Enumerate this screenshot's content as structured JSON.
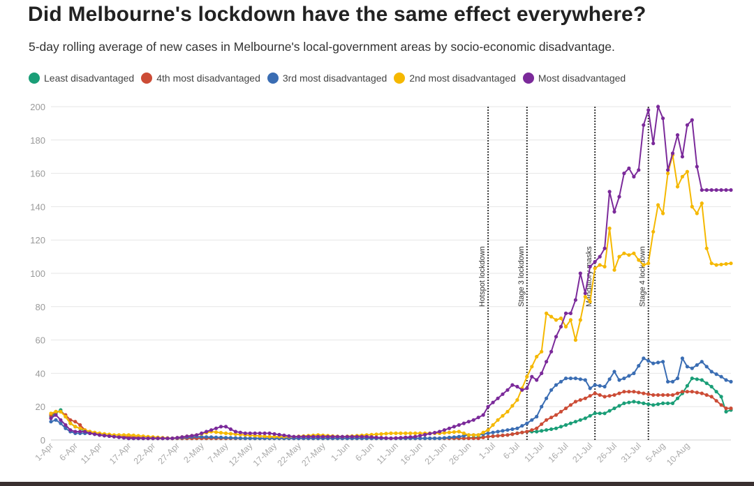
{
  "page": {
    "title": "Did Melbourne's lockdown have the same effect everywhere?",
    "subtitle": "5-day rolling average of new cases in Melbourne's local-government areas by socio-economic disadvantage."
  },
  "legend": [
    {
      "label": "Least disadvantaged",
      "color": "#1a9e77"
    },
    {
      "label": "4th most disadvantaged",
      "color": "#cc4c36"
    },
    {
      "label": "3rd most disadvantaged",
      "color": "#3a6db3"
    },
    {
      "label": "2nd most disadvantaged",
      "color": "#f5b800"
    },
    {
      "label": "Most disadvantaged",
      "color": "#7b2a9a"
    }
  ],
  "chart_data": {
    "type": "line",
    "x_start_date": "2020-04-01",
    "x_tick_labels": [
      "1-Apr",
      "6-Apr",
      "11-Apr",
      "17-Apr",
      "22-Apr",
      "27-Apr",
      "2-May",
      "7-May",
      "12-May",
      "17-May",
      "22-May",
      "27-May",
      "1-Jun",
      "6-Jun",
      "11-Jun",
      "16-Jun",
      "21-Jun",
      "26-Jun",
      "1-Jul",
      "6-Jul",
      "11-Jul",
      "16-Jul",
      "21-Jul",
      "26-Jul",
      "31-Jul",
      "5-Aug",
      "10-Aug"
    ],
    "ylim": [
      0,
      200
    ],
    "y_ticks": [
      0,
      20,
      40,
      60,
      80,
      100,
      120,
      140,
      160,
      180,
      200
    ],
    "grid": true,
    "legend_position": "top",
    "annotations": [
      {
        "label": "Hotspot lockdown",
        "date": "2020-06-30"
      },
      {
        "label": "Stage 3 lockdown",
        "date": "2020-07-08"
      },
      {
        "label": "Mandatory masks",
        "date": "2020-07-22"
      },
      {
        "label": "Stage 4 lockdown",
        "date": "2020-08-02"
      }
    ],
    "series": [
      {
        "name": "Least disadvantaged",
        "color": "#1a9e77",
        "points": [
          [
            0,
            14
          ],
          [
            1,
            16
          ],
          [
            2,
            18
          ],
          [
            3,
            14
          ],
          [
            4,
            10
          ],
          [
            5,
            8
          ],
          [
            6,
            7
          ],
          [
            7,
            5
          ],
          [
            8,
            4
          ],
          [
            10,
            3
          ],
          [
            13,
            2
          ],
          [
            16,
            1
          ],
          [
            20,
            1
          ],
          [
            25,
            1
          ],
          [
            30,
            1
          ],
          [
            40,
            1
          ],
          [
            50,
            1
          ],
          [
            60,
            1
          ],
          [
            70,
            1
          ],
          [
            80,
            1
          ],
          [
            85,
            1
          ],
          [
            90,
            2
          ],
          [
            94,
            3
          ],
          [
            96,
            4
          ],
          [
            98,
            5
          ],
          [
            100,
            5
          ],
          [
            102,
            6
          ],
          [
            104,
            7
          ],
          [
            106,
            9
          ],
          [
            108,
            11
          ],
          [
            110,
            13
          ],
          [
            112,
            16
          ],
          [
            114,
            16
          ],
          [
            116,
            19
          ],
          [
            118,
            22
          ],
          [
            120,
            23
          ],
          [
            122,
            22
          ],
          [
            124,
            21
          ],
          [
            126,
            22
          ],
          [
            128,
            22
          ],
          [
            130,
            28
          ],
          [
            132,
            37
          ],
          [
            134,
            36
          ],
          [
            136,
            32
          ],
          [
            138,
            26
          ],
          [
            139,
            17
          ],
          [
            140,
            18
          ]
        ]
      },
      {
        "name": "4th most disadvantaged",
        "color": "#cc4c36",
        "points": [
          [
            0,
            15
          ],
          [
            1,
            17
          ],
          [
            2,
            17
          ],
          [
            3,
            15
          ],
          [
            4,
            12
          ],
          [
            5,
            11
          ],
          [
            6,
            9
          ],
          [
            7,
            6
          ],
          [
            8,
            5
          ],
          [
            10,
            3
          ],
          [
            13,
            2
          ],
          [
            16,
            2
          ],
          [
            20,
            1
          ],
          [
            25,
            1
          ],
          [
            30,
            1
          ],
          [
            40,
            1
          ],
          [
            50,
            1
          ],
          [
            60,
            1
          ],
          [
            70,
            1
          ],
          [
            80,
            1
          ],
          [
            85,
            1
          ],
          [
            88,
            1
          ],
          [
            90,
            2
          ],
          [
            94,
            3
          ],
          [
            96,
            4
          ],
          [
            98,
            5
          ],
          [
            100,
            7
          ],
          [
            102,
            12
          ],
          [
            104,
            15
          ],
          [
            106,
            19
          ],
          [
            108,
            23
          ],
          [
            110,
            25
          ],
          [
            112,
            28
          ],
          [
            114,
            26
          ],
          [
            116,
            27
          ],
          [
            118,
            29
          ],
          [
            120,
            29
          ],
          [
            122,
            28
          ],
          [
            124,
            27
          ],
          [
            126,
            27
          ],
          [
            128,
            27
          ],
          [
            130,
            29
          ],
          [
            132,
            29
          ],
          [
            134,
            28
          ],
          [
            136,
            26
          ],
          [
            138,
            21
          ],
          [
            139,
            19
          ],
          [
            140,
            19
          ]
        ]
      },
      {
        "name": "3rd most disadvantaged",
        "color": "#3a6db3",
        "points": [
          [
            0,
            11
          ],
          [
            1,
            12
          ],
          [
            2,
            10
          ],
          [
            3,
            7
          ],
          [
            4,
            5
          ],
          [
            5,
            4
          ],
          [
            6,
            4
          ],
          [
            7,
            4
          ],
          [
            8,
            4
          ],
          [
            10,
            3
          ],
          [
            13,
            2
          ],
          [
            16,
            1
          ],
          [
            20,
            1
          ],
          [
            25,
            1
          ],
          [
            30,
            2
          ],
          [
            40,
            1
          ],
          [
            50,
            1
          ],
          [
            60,
            1
          ],
          [
            70,
            1
          ],
          [
            80,
            1
          ],
          [
            84,
            2
          ],
          [
            86,
            3
          ],
          [
            88,
            3
          ],
          [
            90,
            4
          ],
          [
            92,
            5
          ],
          [
            94,
            6
          ],
          [
            96,
            7
          ],
          [
            98,
            10
          ],
          [
            100,
            14
          ],
          [
            101,
            20
          ],
          [
            102,
            25
          ],
          [
            103,
            30
          ],
          [
            104,
            33
          ],
          [
            105,
            35
          ],
          [
            106,
            37
          ],
          [
            108,
            37
          ],
          [
            110,
            36
          ],
          [
            111,
            31
          ],
          [
            112,
            33
          ],
          [
            114,
            32
          ],
          [
            116,
            41
          ],
          [
            117,
            36
          ],
          [
            118,
            37
          ],
          [
            120,
            40
          ],
          [
            122,
            49
          ],
          [
            124,
            46
          ],
          [
            126,
            47
          ],
          [
            127,
            35
          ],
          [
            128,
            35
          ],
          [
            129,
            37
          ],
          [
            130,
            49
          ],
          [
            131,
            44
          ],
          [
            132,
            43
          ],
          [
            134,
            47
          ],
          [
            136,
            41
          ],
          [
            138,
            38
          ],
          [
            139,
            36
          ],
          [
            140,
            35
          ]
        ]
      },
      {
        "name": "2nd most disadvantaged",
        "color": "#f5b800",
        "points": [
          [
            0,
            16
          ],
          [
            1,
            17
          ],
          [
            2,
            17
          ],
          [
            3,
            14
          ],
          [
            4,
            10
          ],
          [
            5,
            8
          ],
          [
            6,
            7
          ],
          [
            7,
            6
          ],
          [
            8,
            5
          ],
          [
            10,
            4
          ],
          [
            13,
            3
          ],
          [
            16,
            3
          ],
          [
            20,
            2
          ],
          [
            25,
            1
          ],
          [
            30,
            3
          ],
          [
            33,
            5
          ],
          [
            36,
            4
          ],
          [
            40,
            3
          ],
          [
            45,
            2
          ],
          [
            50,
            2
          ],
          [
            55,
            3
          ],
          [
            60,
            2
          ],
          [
            65,
            3
          ],
          [
            70,
            4
          ],
          [
            75,
            4
          ],
          [
            80,
            4
          ],
          [
            84,
            5
          ],
          [
            86,
            3
          ],
          [
            88,
            3
          ],
          [
            90,
            6
          ],
          [
            92,
            12
          ],
          [
            94,
            17
          ],
          [
            96,
            24
          ],
          [
            98,
            38
          ],
          [
            100,
            50
          ],
          [
            101,
            53
          ],
          [
            102,
            76
          ],
          [
            103,
            74
          ],
          [
            104,
            72
          ],
          [
            105,
            73
          ],
          [
            106,
            68
          ],
          [
            107,
            72
          ],
          [
            108,
            60
          ],
          [
            109,
            72
          ],
          [
            110,
            86
          ],
          [
            111,
            83
          ],
          [
            112,
            103
          ],
          [
            113,
            105
          ],
          [
            114,
            104
          ],
          [
            115,
            127
          ],
          [
            116,
            102
          ],
          [
            117,
            110
          ],
          [
            118,
            112
          ],
          [
            119,
            111
          ],
          [
            120,
            112
          ],
          [
            121,
            108
          ],
          [
            122,
            105
          ],
          [
            123,
            106
          ],
          [
            124,
            125
          ],
          [
            125,
            141
          ],
          [
            126,
            136
          ],
          [
            127,
            160
          ],
          [
            128,
            171
          ],
          [
            129,
            152
          ],
          [
            130,
            158
          ],
          [
            131,
            161
          ],
          [
            132,
            140
          ],
          [
            133,
            136
          ],
          [
            134,
            142
          ],
          [
            135,
            115
          ],
          [
            136,
            106
          ],
          [
            137,
            105
          ],
          [
            140,
            106
          ]
        ]
      },
      {
        "name": "Most disadvantaged",
        "color": "#7b2a9a",
        "points": [
          [
            0,
            13
          ],
          [
            1,
            15
          ],
          [
            2,
            12
          ],
          [
            3,
            9
          ],
          [
            4,
            6
          ],
          [
            5,
            5
          ],
          [
            6,
            5
          ],
          [
            7,
            5
          ],
          [
            8,
            4
          ],
          [
            10,
            3
          ],
          [
            13,
            2
          ],
          [
            16,
            1
          ],
          [
            20,
            1
          ],
          [
            25,
            1
          ],
          [
            30,
            3
          ],
          [
            33,
            6
          ],
          [
            35,
            8
          ],
          [
            36,
            8
          ],
          [
            38,
            5
          ],
          [
            40,
            4
          ],
          [
            45,
            4
          ],
          [
            50,
            2
          ],
          [
            55,
            2
          ],
          [
            60,
            2
          ],
          [
            65,
            2
          ],
          [
            70,
            1
          ],
          [
            75,
            2
          ],
          [
            80,
            5
          ],
          [
            83,
            8
          ],
          [
            85,
            10
          ],
          [
            87,
            12
          ],
          [
            89,
            15
          ],
          [
            90,
            20
          ],
          [
            92,
            25
          ],
          [
            94,
            30
          ],
          [
            95,
            33
          ],
          [
            96,
            32
          ],
          [
            97,
            30
          ],
          [
            98,
            31
          ],
          [
            99,
            38
          ],
          [
            100,
            36
          ],
          [
            101,
            40
          ],
          [
            102,
            47
          ],
          [
            103,
            53
          ],
          [
            104,
            62
          ],
          [
            105,
            68
          ],
          [
            106,
            76
          ],
          [
            107,
            76
          ],
          [
            108,
            84
          ],
          [
            109,
            100
          ],
          [
            110,
            88
          ],
          [
            111,
            104
          ],
          [
            112,
            107
          ],
          [
            113,
            110
          ],
          [
            114,
            115
          ],
          [
            115,
            149
          ],
          [
            116,
            137
          ],
          [
            117,
            146
          ],
          [
            118,
            160
          ],
          [
            119,
            163
          ],
          [
            120,
            158
          ],
          [
            121,
            162
          ],
          [
            122,
            189
          ],
          [
            123,
            198
          ],
          [
            124,
            178
          ],
          [
            125,
            200
          ],
          [
            126,
            193
          ],
          [
            127,
            162
          ],
          [
            128,
            172
          ],
          [
            129,
            183
          ],
          [
            130,
            170
          ],
          [
            131,
            189
          ],
          [
            132,
            192
          ],
          [
            133,
            164
          ],
          [
            134,
            150
          ],
          [
            140,
            150
          ]
        ]
      }
    ]
  }
}
